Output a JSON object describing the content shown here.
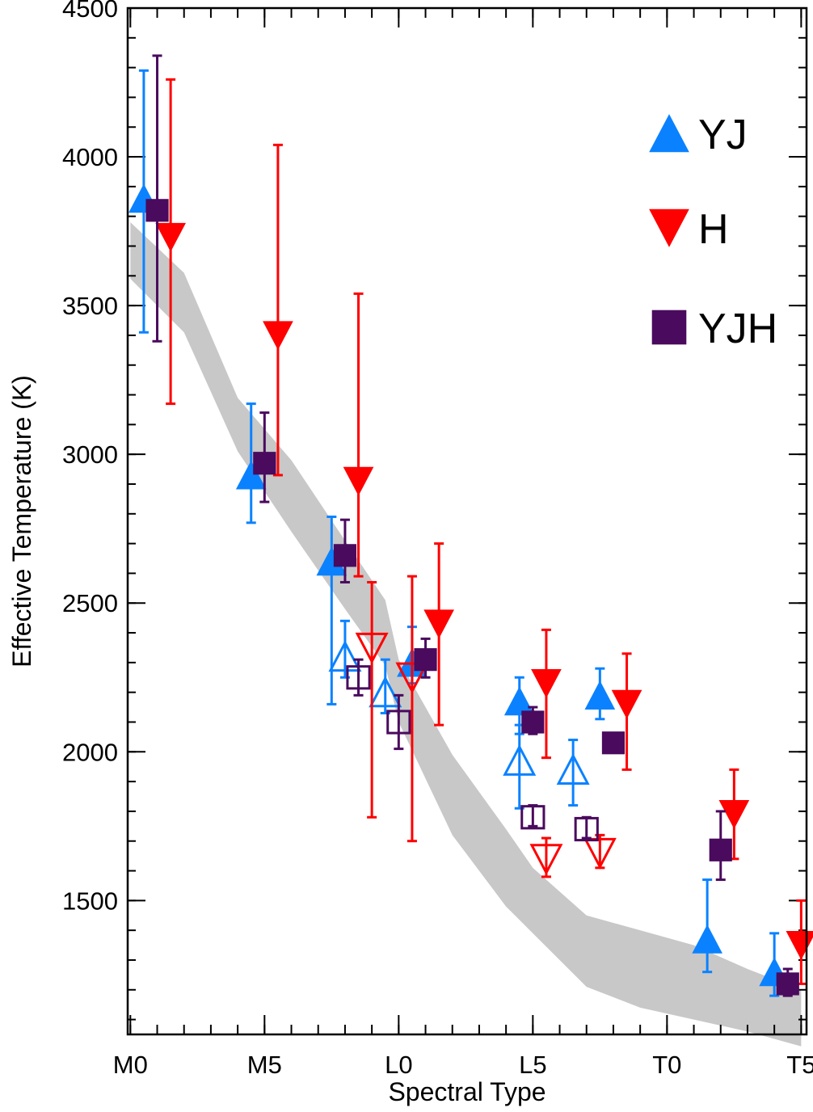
{
  "chart_data": {
    "type": "scatter",
    "title": "",
    "xlabel": "Spectral Type",
    "ylabel": "Effective Temperature (K)",
    "x_axis": {
      "range": [
        -0.1,
        25.2
      ],
      "major_ticks": [
        {
          "v": 0,
          "label": "M0"
        },
        {
          "v": 5,
          "label": "M5"
        },
        {
          "v": 10,
          "label": "L0"
        },
        {
          "v": 15,
          "label": "L5"
        },
        {
          "v": 20,
          "label": "T0"
        },
        {
          "v": 25,
          "label": "T5"
        }
      ],
      "minor_tick_step": 1
    },
    "y_axis": {
      "range": [
        1050,
        4500
      ],
      "major_ticks": [
        1500,
        2000,
        2500,
        3000,
        3500,
        4000,
        4500
      ],
      "minor_tick_step": 100
    },
    "band": {
      "color": "#c8c8c8",
      "x": [
        0,
        2,
        4,
        6,
        8,
        9.5,
        10,
        12,
        14,
        15,
        17,
        19,
        21,
        23,
        25
      ],
      "upper": [
        3780,
        3610,
        3190,
        2980,
        2710,
        2510,
        2310,
        1990,
        1740,
        1610,
        1450,
        1400,
        1350,
        1270,
        1200
      ],
      "lower": [
        3590,
        3410,
        3010,
        2740,
        2480,
        2290,
        2100,
        1720,
        1480,
        1390,
        1210,
        1140,
        1100,
        1060,
        1010
      ]
    },
    "legend": {
      "position": "top-right",
      "entries": [
        {
          "marker": "triangle-up",
          "label": "YJ",
          "color": "#0a82ff"
        },
        {
          "marker": "triangle-down",
          "label": "H",
          "color": "#ff0000"
        },
        {
          "marker": "square",
          "label": "YJH",
          "color": "#4a0a5e"
        }
      ]
    },
    "series": [
      {
        "name": "YJ",
        "marker": "triangle-up",
        "color": "#0a82ff",
        "points": [
          {
            "x": 0.5,
            "y": 3860,
            "lo": 3410,
            "hi": 4290,
            "filled": true
          },
          {
            "x": 4.5,
            "y": 2930,
            "lo": 2770,
            "hi": 3170,
            "filled": true
          },
          {
            "x": 7.5,
            "y": 2640,
            "lo": 2160,
            "hi": 2790,
            "filled": true
          },
          {
            "x": 8.0,
            "y": 2320,
            "lo": 2250,
            "hi": 2440,
            "filled": false
          },
          {
            "x": 9.5,
            "y": 2200,
            "lo": 2130,
            "hi": 2310,
            "filled": false
          },
          {
            "x": 10.5,
            "y": 2300,
            "lo": 2230,
            "hi": 2420,
            "filled": true
          },
          {
            "x": 14.5,
            "y": 2170,
            "lo": 2060,
            "hi": 2250,
            "filled": true
          },
          {
            "x": 14.5,
            "y": 1970,
            "lo": 1810,
            "hi": 2090,
            "filled": false
          },
          {
            "x": 16.5,
            "y": 1940,
            "lo": 1820,
            "hi": 2040,
            "filled": false
          },
          {
            "x": 17.5,
            "y": 2190,
            "lo": 2110,
            "hi": 2280,
            "filled": true
          },
          {
            "x": 21.5,
            "y": 1370,
            "lo": 1260,
            "hi": 1570,
            "filled": true
          },
          {
            "x": 24.0,
            "y": 1260,
            "lo": 1180,
            "hi": 1390,
            "filled": true
          }
        ]
      },
      {
        "name": "H",
        "marker": "triangle-down",
        "color": "#ff0000",
        "points": [
          {
            "x": 1.5,
            "y": 3730,
            "lo": 3170,
            "hi": 4260,
            "filled": true
          },
          {
            "x": 5.5,
            "y": 3400,
            "lo": 2930,
            "hi": 4040,
            "filled": true
          },
          {
            "x": 8.5,
            "y": 2910,
            "lo": 2590,
            "hi": 3540,
            "filled": true
          },
          {
            "x": 9.0,
            "y": 2350,
            "lo": 1780,
            "hi": 2570,
            "filled": false
          },
          {
            "x": 10.5,
            "y": 2250,
            "lo": 1700,
            "hi": 2590,
            "filled": false
          },
          {
            "x": 11.5,
            "y": 2430,
            "lo": 2090,
            "hi": 2700,
            "filled": true
          },
          {
            "x": 15.5,
            "y": 2230,
            "lo": 1980,
            "hi": 2410,
            "filled": true
          },
          {
            "x": 15.5,
            "y": 1640,
            "lo": 1580,
            "hi": 1710,
            "filled": false
          },
          {
            "x": 17.5,
            "y": 1660,
            "lo": 1610,
            "hi": 1720,
            "filled": false
          },
          {
            "x": 18.5,
            "y": 2160,
            "lo": 1940,
            "hi": 2330,
            "filled": true
          },
          {
            "x": 22.5,
            "y": 1790,
            "lo": 1640,
            "hi": 1940,
            "filled": true
          },
          {
            "x": 25.0,
            "y": 1350,
            "lo": 1220,
            "hi": 1500,
            "filled": true
          }
        ]
      },
      {
        "name": "YJH",
        "marker": "square",
        "color": "#4a0a5e",
        "points": [
          {
            "x": 1.0,
            "y": 3820,
            "lo": 3380,
            "hi": 4340,
            "filled": true
          },
          {
            "x": 5.0,
            "y": 2970,
            "lo": 2840,
            "hi": 3140,
            "filled": true
          },
          {
            "x": 8.0,
            "y": 2660,
            "lo": 2570,
            "hi": 2780,
            "filled": true
          },
          {
            "x": 8.5,
            "y": 2250,
            "lo": 2190,
            "hi": 2310,
            "filled": false
          },
          {
            "x": 10.0,
            "y": 2100,
            "lo": 2010,
            "hi": 2190,
            "filled": false
          },
          {
            "x": 11.0,
            "y": 2310,
            "lo": 2250,
            "hi": 2380,
            "filled": true
          },
          {
            "x": 15.0,
            "y": 2100,
            "lo": 2060,
            "hi": 2150,
            "filled": true
          },
          {
            "x": 15.0,
            "y": 1780,
            "lo": 1750,
            "hi": 1820,
            "filled": false
          },
          {
            "x": 17.0,
            "y": 1740,
            "lo": 1710,
            "hi": 1780,
            "filled": false
          },
          {
            "x": 18.0,
            "y": 2030,
            "lo": 2000,
            "hi": 2060,
            "filled": true
          },
          {
            "x": 22.0,
            "y": 1670,
            "lo": 1570,
            "hi": 1800,
            "filled": true
          },
          {
            "x": 24.5,
            "y": 1220,
            "lo": 1180,
            "hi": 1270,
            "filled": true
          }
        ]
      }
    ]
  }
}
